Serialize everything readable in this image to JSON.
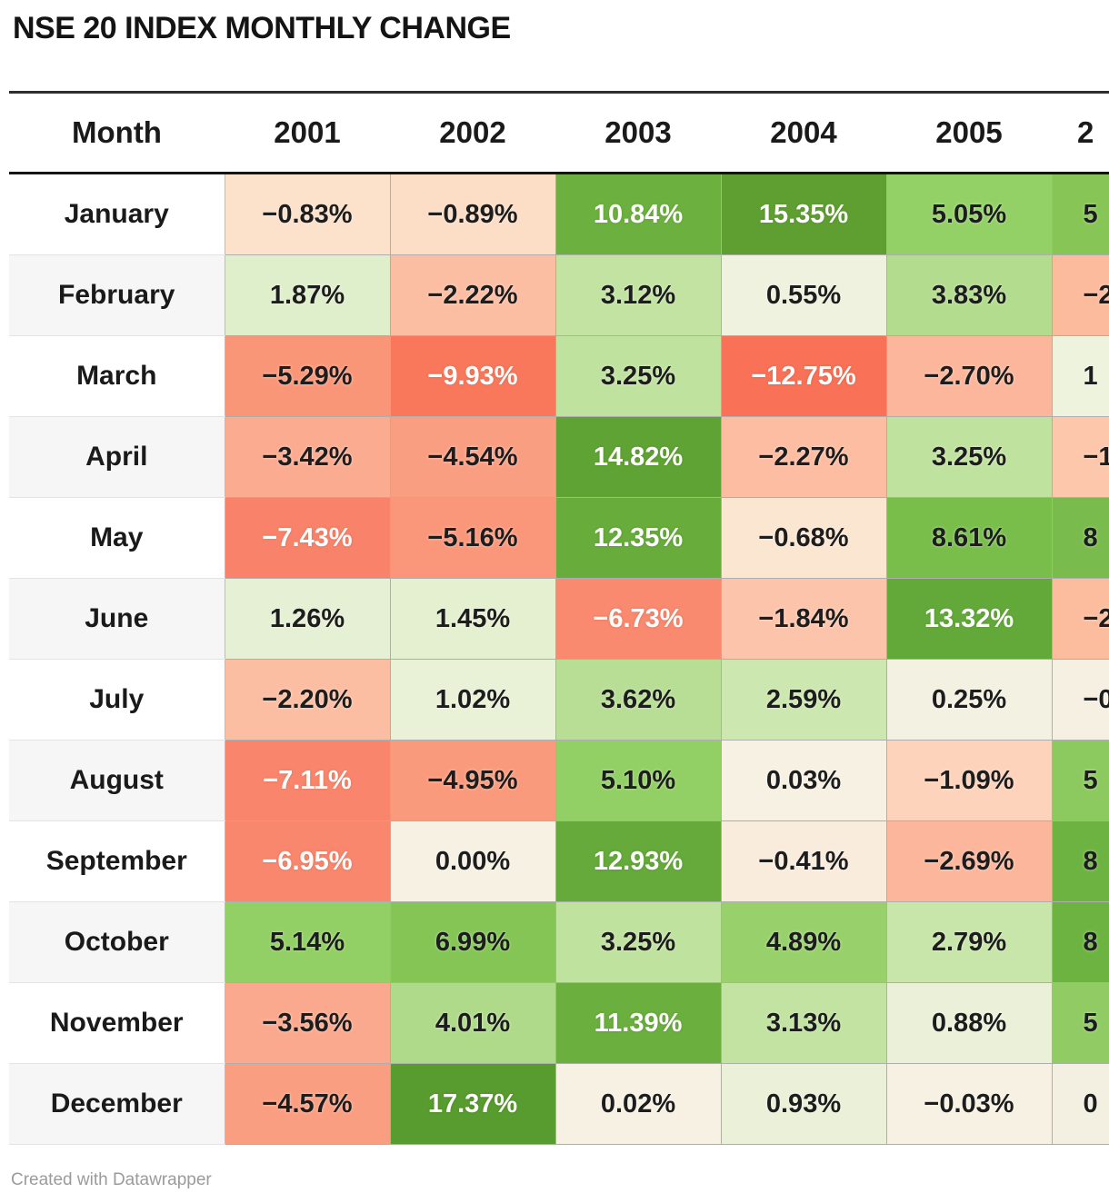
{
  "title": "NSE 20 INDEX MONTHLY CHANGE",
  "attribution": "Created with Datawrapper",
  "table": {
    "month_header": "Month",
    "year_headers": [
      "2001",
      "2002",
      "2003",
      "2004",
      "2005"
    ],
    "partial_year_header": "2",
    "months": [
      "January",
      "February",
      "March",
      "April",
      "May",
      "June",
      "July",
      "August",
      "September",
      "October",
      "November",
      "December"
    ]
  },
  "chart_data": {
    "type": "heatmap",
    "title": "NSE 20 INDEX MONTHLY CHANGE",
    "rows": [
      "January",
      "February",
      "March",
      "April",
      "May",
      "June",
      "July",
      "August",
      "September",
      "October",
      "November",
      "December"
    ],
    "columns": [
      "2001",
      "2002",
      "2003",
      "2004",
      "2005"
    ],
    "unit": "%",
    "values": [
      [
        -0.83,
        -0.89,
        10.84,
        15.35,
        5.05
      ],
      [
        1.87,
        -2.22,
        3.12,
        0.55,
        3.83
      ],
      [
        -5.29,
        -9.93,
        3.25,
        -12.75,
        -2.7
      ],
      [
        -3.42,
        -4.54,
        14.82,
        -2.27,
        3.25
      ],
      [
        -7.43,
        -5.16,
        12.35,
        -0.68,
        8.61
      ],
      [
        1.26,
        1.45,
        -6.73,
        -1.84,
        13.32
      ],
      [
        -2.2,
        1.02,
        3.62,
        2.59,
        0.25
      ],
      [
        -7.11,
        -4.95,
        5.1,
        0.03,
        -1.09
      ],
      [
        -6.95,
        0.0,
        12.93,
        -0.41,
        -2.69
      ],
      [
        5.14,
        6.99,
        3.25,
        4.89,
        2.79
      ],
      [
        -3.56,
        4.01,
        11.39,
        3.13,
        0.88
      ],
      [
        -4.57,
        17.37,
        0.02,
        0.93,
        -0.03
      ]
    ],
    "partial_column": {
      "header_visible_text": "2",
      "cells": [
        {
          "text": "5",
          "bg": "#86c556"
        },
        {
          "text": "−2",
          "bg": "#fcbb9d"
        },
        {
          "text": "1",
          "bg": "#eef3dd"
        },
        {
          "text": "−1",
          "bg": "#fcc7ab"
        },
        {
          "text": "8",
          "bg": "#79bb4c"
        },
        {
          "text": "−2",
          "bg": "#fcbd9f"
        },
        {
          "text": "−0",
          "bg": "#f6f0e2"
        },
        {
          "text": "5",
          "bg": "#8cc95e"
        },
        {
          "text": "8",
          "bg": "#6db342"
        },
        {
          "text": "8",
          "bg": "#6db342"
        },
        {
          "text": "5",
          "bg": "#90cb63"
        },
        {
          "text": "0",
          "bg": "#f4f0e1"
        }
      ]
    },
    "color_scale": {
      "negative_max": "#f97056",
      "neutral": "#f7f1e4",
      "positive_max": "#589b2e",
      "white_text_when": "value >= 10 or value <= -6.5",
      "stops": [
        [
          -13,
          "#f97056"
        ],
        [
          -10,
          "#f9785c"
        ],
        [
          -7.4,
          "#f9836a"
        ],
        [
          -5.2,
          "#fa9779"
        ],
        [
          -3.5,
          "#fbaa8f"
        ],
        [
          -2.2,
          "#fcbea3"
        ],
        [
          -1.1,
          "#fdd2ba"
        ],
        [
          -0.8,
          "#fce3cd"
        ],
        [
          -0.4,
          "#faecdd"
        ],
        [
          0,
          "#f7f1e4"
        ],
        [
          0.6,
          "#eef2dd"
        ],
        [
          1,
          "#e9f1d7"
        ],
        [
          1.9,
          "#e0efcb"
        ],
        [
          2.6,
          "#cce7af"
        ],
        [
          3.3,
          "#bfe29e"
        ],
        [
          4,
          "#afda8a"
        ],
        [
          5.1,
          "#92cf64"
        ],
        [
          7,
          "#84c555"
        ],
        [
          8.6,
          "#79bd4b"
        ],
        [
          10.9,
          "#6cb13f"
        ],
        [
          12.4,
          "#68ac3c"
        ],
        [
          13.4,
          "#63a93a"
        ],
        [
          14.9,
          "#60a335"
        ],
        [
          15.4,
          "#5f9e32"
        ],
        [
          17.4,
          "#589b2e"
        ]
      ]
    }
  }
}
